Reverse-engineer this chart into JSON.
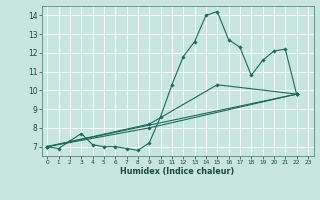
{
  "xlabel": "Humidex (Indice chaleur)",
  "background_color": "#c8e6df",
  "grid_color": "#ffffff",
  "line_color": "#1a6b5a",
  "xlim": [
    -0.5,
    23.5
  ],
  "ylim": [
    6.5,
    14.5
  ],
  "xticks": [
    0,
    1,
    2,
    3,
    4,
    5,
    6,
    7,
    8,
    9,
    10,
    11,
    12,
    13,
    14,
    15,
    16,
    17,
    18,
    19,
    20,
    21,
    22,
    23
  ],
  "yticks": [
    7,
    8,
    9,
    10,
    11,
    12,
    13,
    14
  ],
  "lines": [
    {
      "x": [
        0,
        1,
        2,
        3,
        4,
        5,
        6,
        7,
        8,
        9,
        10,
        11,
        12,
        13,
        14,
        15,
        16,
        17,
        18,
        19,
        20,
        21,
        22
      ],
      "y": [
        7.0,
        6.9,
        7.3,
        7.7,
        7.1,
        7.0,
        7.0,
        6.9,
        6.8,
        7.2,
        8.6,
        10.3,
        11.8,
        12.6,
        14.0,
        14.2,
        12.7,
        12.3,
        10.8,
        11.6,
        12.1,
        12.2,
        9.8
      ]
    },
    {
      "x": [
        0,
        22
      ],
      "y": [
        7.0,
        9.8
      ]
    },
    {
      "x": [
        0,
        9,
        22
      ],
      "y": [
        7.0,
        8.0,
        9.8
      ]
    },
    {
      "x": [
        0,
        9,
        15,
        22
      ],
      "y": [
        7.0,
        8.2,
        10.3,
        9.8
      ]
    }
  ]
}
